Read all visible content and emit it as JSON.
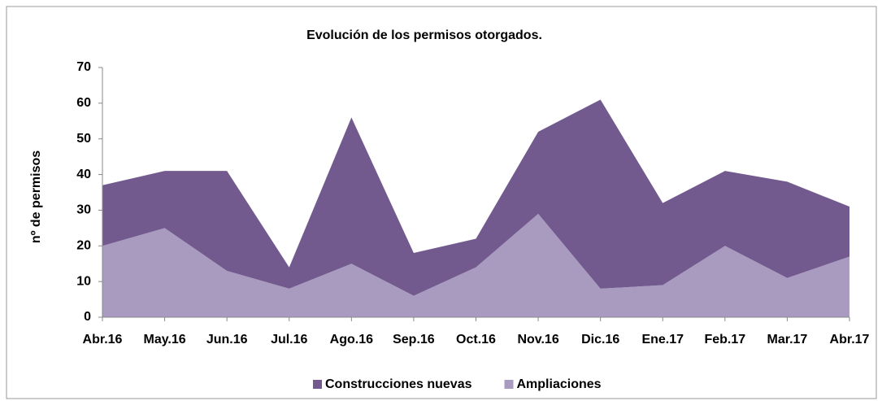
{
  "chart_data": {
    "type": "stacked_area",
    "title": "Evolución de los permisos otorgados.",
    "y_label": "nº de permisos",
    "categories": [
      "Abr.16",
      "May.16",
      "Jun.16",
      "Jul.16",
      "Ago.16",
      "Sep.16",
      "Oct.16",
      "Nov.16",
      "Dic.16",
      "Ene.17",
      "Feb.17",
      "Mar.17",
      "Abr.17"
    ],
    "series": [
      {
        "name": "Construcciones nuevas",
        "color": "#725a8e",
        "values": [
          17,
          16,
          28,
          6,
          41,
          12,
          8,
          23,
          53,
          23,
          21,
          27,
          14
        ]
      },
      {
        "name": "Ampliaciones",
        "color": "#a99bc0",
        "values": [
          20,
          25,
          13,
          8,
          15,
          6,
          14,
          29,
          8,
          9,
          20,
          11,
          17
        ]
      }
    ],
    "ylim": [
      0,
      70
    ],
    "yticks": [
      0,
      10,
      20,
      30,
      40,
      50,
      60,
      70
    ],
    "legend": "bottom"
  }
}
